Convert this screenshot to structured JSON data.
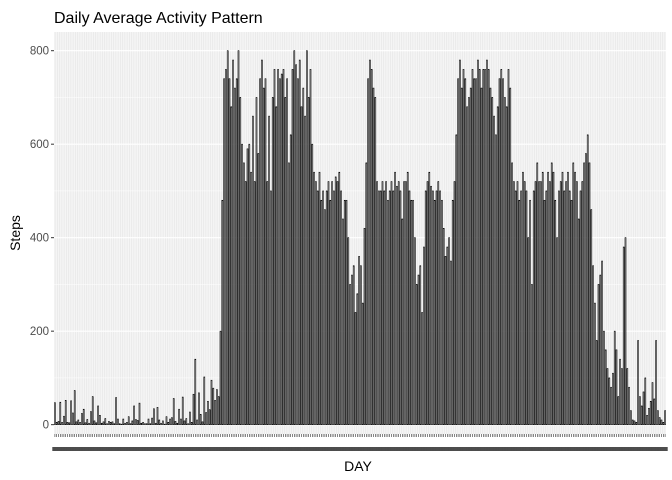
{
  "chart_data": {
    "type": "bar",
    "title": "Daily Average Activity Pattern",
    "xlabel": "DAY",
    "ylabel": "Steps",
    "ylim": [
      -20,
      840
    ],
    "yticks": [
      0,
      200,
      400,
      600,
      800
    ],
    "grid": true,
    "legend": "none",
    "x_tick_labels_legible": false,
    "series": [
      {
        "values": [
          47,
          5,
          7,
          48,
          5,
          18,
          52,
          5,
          4,
          51,
          25,
          73,
          6,
          10,
          5,
          24,
          33,
          4,
          11,
          3,
          28,
          60,
          8,
          4,
          40,
          20,
          3,
          6,
          13,
          2,
          7,
          5,
          6,
          2,
          58,
          12,
          2,
          1,
          12,
          3,
          5,
          17,
          2,
          8,
          40,
          11,
          9,
          46,
          3,
          5,
          2,
          2,
          12,
          2,
          14,
          34,
          3,
          37,
          10,
          3,
          8,
          1,
          17,
          5,
          12,
          15,
          56,
          7,
          3,
          33,
          12,
          59,
          8,
          13,
          2,
          27,
          5,
          65,
          140,
          10,
          68,
          22,
          6,
          102,
          26,
          50,
          32,
          95,
          78,
          52,
          75,
          60,
          200,
          480,
          740,
          760,
          800,
          740,
          680,
          780,
          720,
          740,
          800,
          700,
          600,
          560,
          520,
          590,
          600,
          540,
          660,
          520,
          700,
          580,
          740,
          780,
          720,
          740,
          520,
          660,
          500,
          700,
          760,
          680,
          760,
          740,
          750,
          760,
          700,
          740,
          560,
          620,
          760,
          800,
          770,
          740,
          780,
          680,
          720,
          660,
          800,
          700,
          760,
          600,
          540,
          520,
          500,
          540,
          480,
          500,
          460,
          500,
          520,
          480,
          520,
          500,
          530,
          520,
          540,
          500,
          440,
          480,
          480,
          400,
          300,
          320,
          340,
          240,
          280,
          360,
          340,
          260,
          420,
          560,
          740,
          780,
          760,
          720,
          700,
          520,
          500,
          500,
          520,
          500,
          520,
          480,
          500,
          520,
          500,
          540,
          510,
          520,
          500,
          440,
          520,
          520,
          540,
          500,
          480,
          480,
          400,
          300,
          320,
          340,
          240,
          380,
          500,
          520,
          540,
          510,
          500,
          480,
          500,
          520,
          500,
          480,
          420,
          360,
          380,
          400,
          350,
          480,
          520,
          620,
          740,
          780,
          720,
          760,
          740,
          680,
          700,
          720,
          760,
          740,
          740,
          780,
          760,
          720,
          760,
          760,
          780,
          760,
          720,
          700,
          660,
          620,
          680,
          740,
          760,
          740,
          700,
          680,
          760,
          720,
          560,
          520,
          500,
          520,
          480,
          500,
          540,
          520,
          500,
          400,
          480,
          300,
          500,
          520,
          560,
          520,
          520,
          540,
          480,
          500,
          540,
          520,
          560,
          540,
          480,
          400,
          500,
          520,
          540,
          500,
          520,
          540,
          500,
          480,
          560,
          540,
          520,
          440,
          500,
          520,
          560,
          580,
          620,
          560,
          460,
          340,
          260,
          180,
          300,
          320,
          350,
          200,
          160,
          120,
          100,
          80,
          110,
          200,
          160,
          60,
          140,
          120,
          380,
          400,
          120,
          80,
          30,
          10,
          8,
          5,
          180,
          60,
          40,
          70,
          100,
          20,
          35,
          50,
          90,
          55,
          180,
          30,
          15,
          10,
          5,
          30
        ]
      }
    ]
  }
}
